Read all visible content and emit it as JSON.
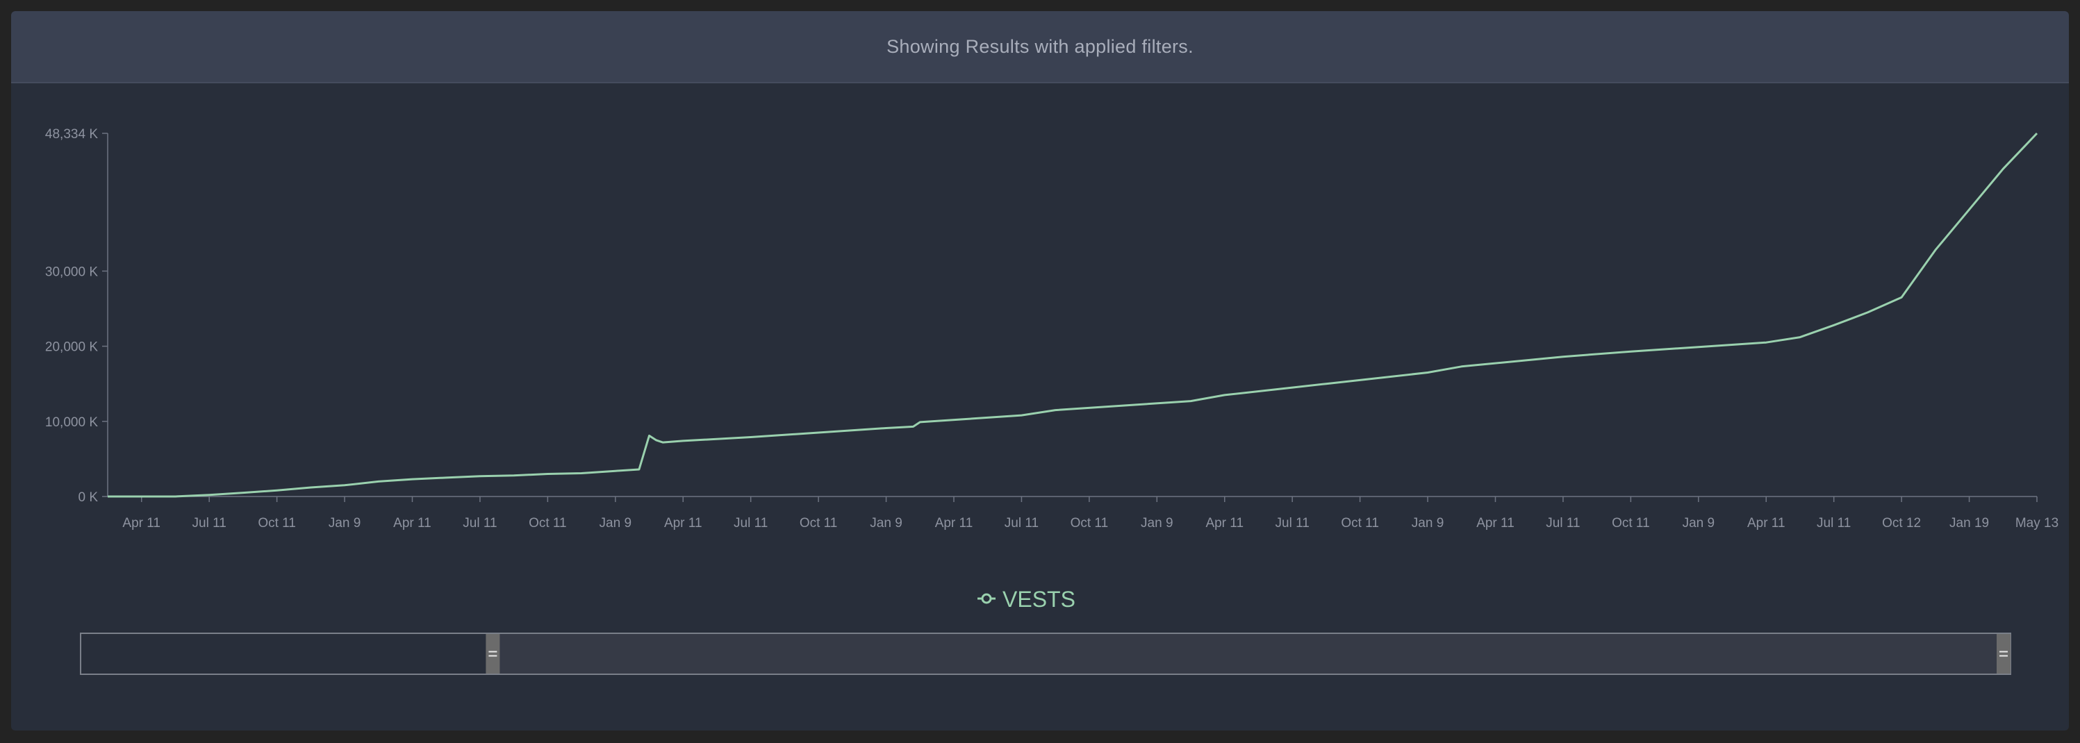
{
  "banner": {
    "text": "Showing Results with applied filters."
  },
  "colors": {
    "page_background": "#232323",
    "panel_background": "#282e3a",
    "banner_background": "#3a4152",
    "series_line": "#9ad1ae",
    "axis": "#6e7482",
    "tick_text": "#8e93a0",
    "brush_selection": "#363a46",
    "brush_handle": "#6b6b6b"
  },
  "chart_data": {
    "type": "line",
    "title": "",
    "xlabel": "",
    "ylabel": "",
    "ylim": [
      0,
      48334
    ],
    "y_ticks": [
      {
        "value": 0,
        "label": "0 K"
      },
      {
        "value": 10000,
        "label": "10,000 K"
      },
      {
        "value": 20000,
        "label": "20,000 K"
      },
      {
        "value": 30000,
        "label": "30,000 K"
      },
      {
        "value": 48334,
        "label": "48,334 K"
      }
    ],
    "x_tick_labels": [
      "Apr 11",
      "Jul 11",
      "Oct 11",
      "Jan 9",
      "Apr 11",
      "Jul 11",
      "Oct 11",
      "Jan 9",
      "Apr 11",
      "Jul 11",
      "Oct 11",
      "Jan 9",
      "Apr 11",
      "Jul 11",
      "Oct 11",
      "Jan 9",
      "Apr 11",
      "Jul 11",
      "Oct 11",
      "Jan 9",
      "Apr 11",
      "Jul 11",
      "Oct 11",
      "Jan 9",
      "Apr 11",
      "Jul 11",
      "Oct 12",
      "Jan 19",
      "May 13"
    ],
    "x_domain": [
      0,
      28.5
    ],
    "x_tick_positions": [
      0.5,
      1.5,
      2.5,
      3.5,
      4.5,
      5.5,
      6.5,
      7.5,
      8.5,
      9.5,
      10.5,
      11.5,
      12.5,
      13.5,
      14.5,
      15.5,
      16.5,
      17.5,
      18.5,
      19.5,
      20.5,
      21.5,
      22.5,
      23.5,
      24.5,
      25.5,
      26.5,
      27.5,
      28.5
    ],
    "grid": false,
    "legend": {
      "position": "bottom-center"
    },
    "series": [
      {
        "name": "VESTS",
        "x": [
          0,
          1,
          1.5,
          2,
          2.5,
          3,
          3.5,
          4,
          4.5,
          5,
          5.5,
          6,
          6.5,
          7,
          7.5,
          7.85,
          8.0,
          8.1,
          8.2,
          8.5,
          9.5,
          10.5,
          11.5,
          11.9,
          12.0,
          13.5,
          14.0,
          16.0,
          16.5,
          17.5,
          18.0,
          19.5,
          20.0,
          21.5,
          22.5,
          23.5,
          24.5,
          25.0,
          25.5,
          26.0,
          26.5,
          27.0,
          27.5,
          28.0,
          28.5
        ],
        "y": [
          0,
          0,
          200,
          500,
          800,
          1200,
          1500,
          2000,
          2300,
          2500,
          2700,
          2800,
          3000,
          3100,
          3400,
          3600,
          8100,
          7500,
          7200,
          7400,
          7900,
          8500,
          9100,
          9300,
          9900,
          10800,
          11500,
          12700,
          13500,
          14500,
          15000,
          16500,
          17300,
          18600,
          19300,
          19900,
          20500,
          21200,
          22800,
          24500,
          26500,
          32800,
          38200,
          43600,
          48334
        ]
      }
    ]
  },
  "brush": {
    "start_fraction": 0.21,
    "end_fraction": 1.0
  }
}
